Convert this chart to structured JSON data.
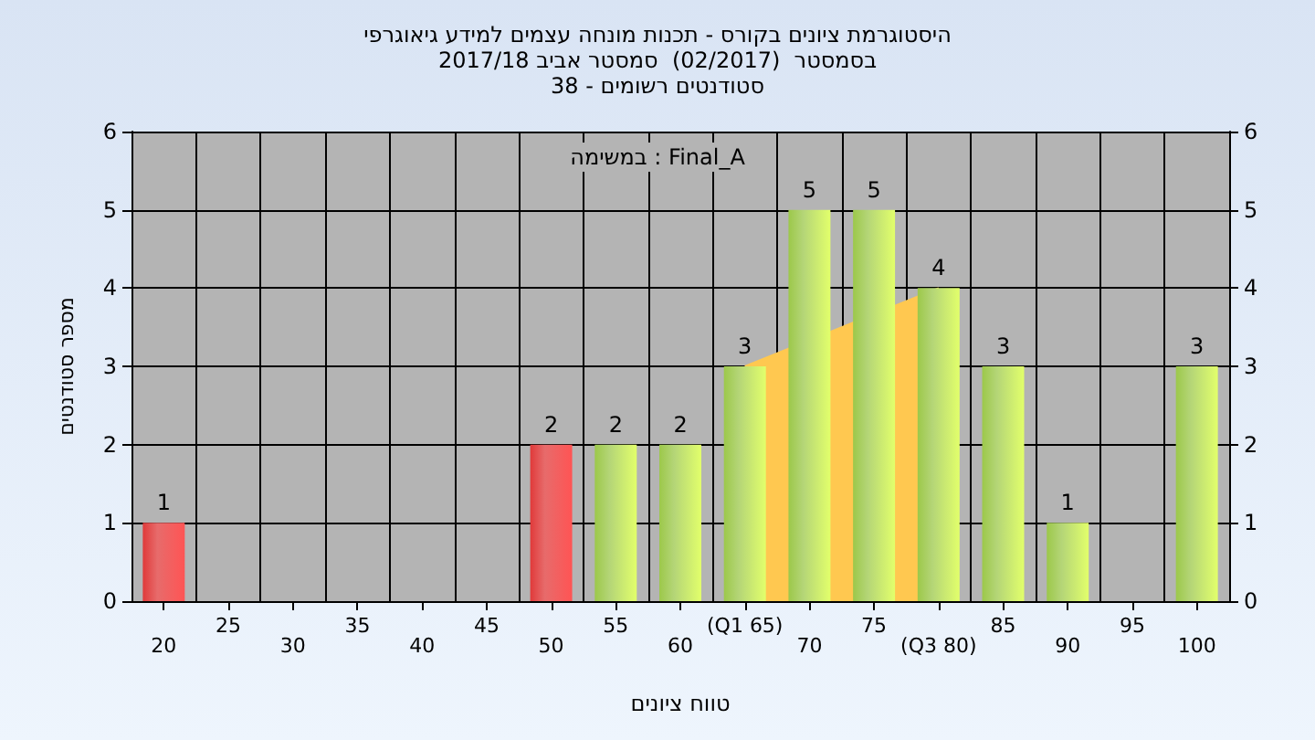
{
  "chart_data": {
    "type": "bar",
    "title": "היסטוגרמת ציונים בקורס - תכנות מונחה עצמים למידע גיאוגרפי",
    "subtitle": "בסמסטר  (02/2017)  סמסטר אביב 2017/18\nסטודנטים רשומים - 38",
    "xlabel": "טווח ציונים",
    "ylabel": "מספר סטודנטים",
    "annotations": [
      "במשימה : Final_A"
    ],
    "categories": [
      "20",
      "25",
      "30",
      "35",
      "40",
      "45",
      "50",
      "55",
      "60",
      "(Q1 65)",
      "70",
      "75",
      "(Q3 80)",
      "85",
      "90",
      "95",
      "100"
    ],
    "series": [
      {
        "type": "area",
        "color": "#ffc850",
        "values": [
          null,
          null,
          null,
          null,
          null,
          null,
          null,
          null,
          null,
          3,
          null,
          null,
          4,
          null,
          null,
          null,
          null
        ]
      },
      {
        "colors": [
          "#e03a3a",
          "#9cc84a",
          "#9cc84a",
          "#9cc84a",
          "#9cc84a",
          "#9cc84a",
          "#e03a3a",
          "#9cc84a",
          "#9cc84a",
          "#9cc84a",
          "#9cc84a",
          "#9cc84a",
          "#9cc84a",
          "#9cc84a",
          "#9cc84a",
          "#9cc84a",
          "#9cc84a"
        ],
        "values": [
          1,
          0,
          0,
          0,
          0,
          0,
          2,
          2,
          2,
          3,
          5,
          5,
          4,
          3,
          1,
          0,
          3
        ],
        "value_labels": [
          "1",
          null,
          null,
          null,
          null,
          null,
          "2",
          "2",
          "2",
          "3",
          "5",
          "5",
          "4",
          "3",
          "1",
          null,
          "3"
        ]
      }
    ],
    "ylim": [
      0,
      6
    ],
    "yticks": [
      0,
      1,
      2,
      3,
      4,
      5,
      6
    ],
    "y2lim": [
      0,
      6
    ],
    "y2ticks": [
      0,
      1,
      2,
      3,
      4,
      5,
      6
    ],
    "grid": true
  }
}
